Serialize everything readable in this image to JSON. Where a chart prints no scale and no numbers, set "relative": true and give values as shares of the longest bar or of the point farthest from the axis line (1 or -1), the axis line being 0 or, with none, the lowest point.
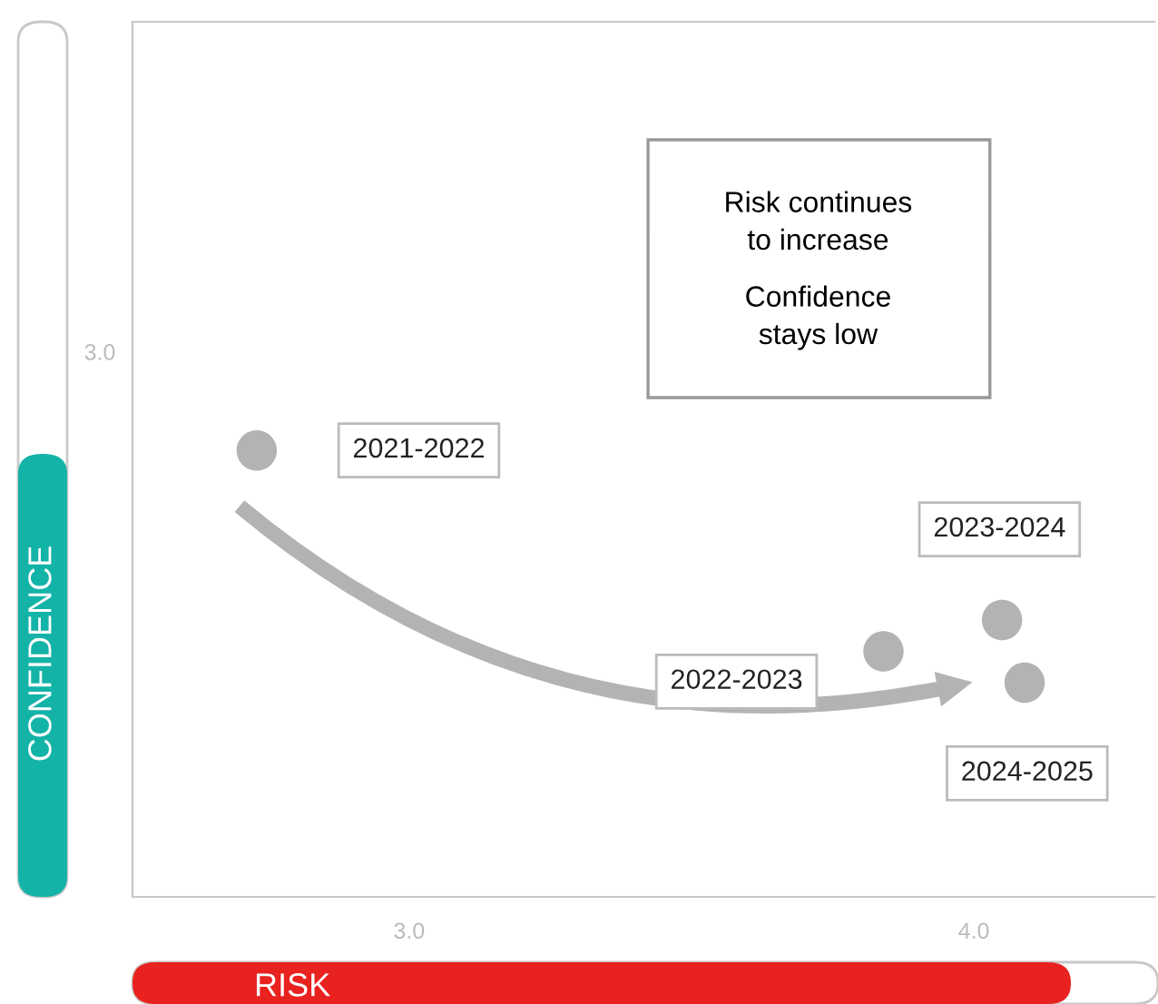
{
  "chart_data": {
    "type": "scatter",
    "xlabel": "RISK",
    "ylabel": "CONFIDENCE",
    "relative": true,
    "x": [
      2.73,
      3.84,
      4.05,
      4.09
    ],
    "series": [
      {
        "color": "#b3b3b3",
        "values": [
          1.0,
          0.55,
          0.62,
          0.48
        ]
      }
    ],
    "xlim": [
      2.51,
      4.32
    ],
    "xticks": [
      {
        "value": 3.0,
        "label": "3.0"
      },
      {
        "value": 4.0,
        "label": "4.0"
      }
    ],
    "marker": "circle",
    "grid": false,
    "legend": false,
    "annotations": [
      "2021-2022",
      "2022-2023",
      "2023-2024",
      "2024-2025",
      "Risk continues\nto increase",
      "Confidence\nstays low",
      "3.0"
    ]
  }
}
